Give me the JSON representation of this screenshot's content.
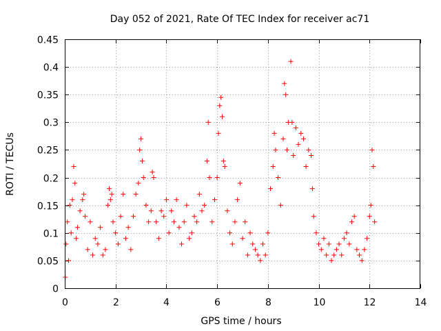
{
  "chart_data": {
    "type": "scatter",
    "title": "Day 052 of 2021, Rate Of TEC Index for receiver ac71",
    "xlabel": "GPS time / hours",
    "ylabel": "ROTI / TECUs",
    "xlim": [
      0,
      14
    ],
    "ylim": [
      0,
      0.45
    ],
    "x_ticks": [
      0,
      2,
      4,
      6,
      8,
      10,
      12,
      14
    ],
    "x_tick_labels": [
      "0",
      "2",
      "4",
      "6",
      "8",
      "10",
      "12",
      "14"
    ],
    "y_ticks": [
      0,
      0.05,
      0.1,
      0.15,
      0.2,
      0.25,
      0.3,
      0.35,
      0.4,
      0.45
    ],
    "y_tick_labels": [
      "0",
      "0.05",
      "0.1",
      "0.15",
      "0.2",
      "0.25",
      "0.3",
      "0.35",
      "0.4",
      "0.45"
    ],
    "grid": true,
    "marker": "+",
    "color": "#ff0000",
    "series": [
      {
        "name": "ROTI",
        "points": [
          [
            0.02,
            0.02
          ],
          [
            0.05,
            0.08
          ],
          [
            0.1,
            0.12
          ],
          [
            0.15,
            0.05
          ],
          [
            0.2,
            0.15
          ],
          [
            0.25,
            0.1
          ],
          [
            0.3,
            0.16
          ],
          [
            0.35,
            0.22
          ],
          [
            0.4,
            0.19
          ],
          [
            0.45,
            0.09
          ],
          [
            0.5,
            0.11
          ],
          [
            0.6,
            0.14
          ],
          [
            0.7,
            0.16
          ],
          [
            0.75,
            0.17
          ],
          [
            0.8,
            0.13
          ],
          [
            0.9,
            0.07
          ],
          [
            1.0,
            0.12
          ],
          [
            1.1,
            0.06
          ],
          [
            1.2,
            0.09
          ],
          [
            1.3,
            0.08
          ],
          [
            1.4,
            0.11
          ],
          [
            1.5,
            0.06
          ],
          [
            1.6,
            0.07
          ],
          [
            1.7,
            0.15
          ],
          [
            1.75,
            0.18
          ],
          [
            1.8,
            0.16
          ],
          [
            1.85,
            0.17
          ],
          [
            1.9,
            0.12
          ],
          [
            2.0,
            0.1
          ],
          [
            2.1,
            0.08
          ],
          [
            2.2,
            0.13
          ],
          [
            2.3,
            0.17
          ],
          [
            2.4,
            0.09
          ],
          [
            2.5,
            0.11
          ],
          [
            2.6,
            0.07
          ],
          [
            2.7,
            0.13
          ],
          [
            2.8,
            0.17
          ],
          [
            2.9,
            0.19
          ],
          [
            2.95,
            0.25
          ],
          [
            3.0,
            0.27
          ],
          [
            3.05,
            0.23
          ],
          [
            3.1,
            0.2
          ],
          [
            3.2,
            0.15
          ],
          [
            3.3,
            0.12
          ],
          [
            3.4,
            0.14
          ],
          [
            3.45,
            0.21
          ],
          [
            3.5,
            0.2
          ],
          [
            3.6,
            0.12
          ],
          [
            3.7,
            0.09
          ],
          [
            3.8,
            0.14
          ],
          [
            3.9,
            0.13
          ],
          [
            4.0,
            0.16
          ],
          [
            4.1,
            0.1
          ],
          [
            4.2,
            0.14
          ],
          [
            4.3,
            0.12
          ],
          [
            4.4,
            0.16
          ],
          [
            4.5,
            0.11
          ],
          [
            4.6,
            0.08
          ],
          [
            4.7,
            0.12
          ],
          [
            4.8,
            0.15
          ],
          [
            4.9,
            0.09
          ],
          [
            5.0,
            0.1
          ],
          [
            5.1,
            0.13
          ],
          [
            5.2,
            0.12
          ],
          [
            5.3,
            0.17
          ],
          [
            5.4,
            0.14
          ],
          [
            5.5,
            0.15
          ],
          [
            5.6,
            0.23
          ],
          [
            5.65,
            0.3
          ],
          [
            5.7,
            0.2
          ],
          [
            5.8,
            0.12
          ],
          [
            5.9,
            0.16
          ],
          [
            6.0,
            0.2
          ],
          [
            6.05,
            0.28
          ],
          [
            6.1,
            0.33
          ],
          [
            6.15,
            0.345
          ],
          [
            6.2,
            0.31
          ],
          [
            6.25,
            0.23
          ],
          [
            6.3,
            0.22
          ],
          [
            6.4,
            0.14
          ],
          [
            6.5,
            0.1
          ],
          [
            6.6,
            0.08
          ],
          [
            6.7,
            0.12
          ],
          [
            6.8,
            0.16
          ],
          [
            6.9,
            0.19
          ],
          [
            7.0,
            0.09
          ],
          [
            7.1,
            0.12
          ],
          [
            7.2,
            0.06
          ],
          [
            7.3,
            0.1
          ],
          [
            7.4,
            0.08
          ],
          [
            7.5,
            0.07
          ],
          [
            7.6,
            0.06
          ],
          [
            7.7,
            0.05
          ],
          [
            7.8,
            0.08
          ],
          [
            7.9,
            0.06
          ],
          [
            8.0,
            0.1
          ],
          [
            8.1,
            0.18
          ],
          [
            8.2,
            0.22
          ],
          [
            8.25,
            0.28
          ],
          [
            8.3,
            0.25
          ],
          [
            8.4,
            0.2
          ],
          [
            8.5,
            0.15
          ],
          [
            8.6,
            0.27
          ],
          [
            8.65,
            0.37
          ],
          [
            8.7,
            0.35
          ],
          [
            8.75,
            0.25
          ],
          [
            8.8,
            0.3
          ],
          [
            8.9,
            0.41
          ],
          [
            8.95,
            0.3
          ],
          [
            9.0,
            0.24
          ],
          [
            9.1,
            0.29
          ],
          [
            9.2,
            0.26
          ],
          [
            9.3,
            0.28
          ],
          [
            9.4,
            0.27
          ],
          [
            9.5,
            0.22
          ],
          [
            9.6,
            0.25
          ],
          [
            9.7,
            0.24
          ],
          [
            9.75,
            0.18
          ],
          [
            9.8,
            0.13
          ],
          [
            9.9,
            0.1
          ],
          [
            10.0,
            0.08
          ],
          [
            10.1,
            0.07
          ],
          [
            10.2,
            0.09
          ],
          [
            10.3,
            0.06
          ],
          [
            10.4,
            0.08
          ],
          [
            10.5,
            0.05
          ],
          [
            10.6,
            0.06
          ],
          [
            10.7,
            0.07
          ],
          [
            10.8,
            0.08
          ],
          [
            10.9,
            0.06
          ],
          [
            11.0,
            0.09
          ],
          [
            11.1,
            0.1
          ],
          [
            11.2,
            0.08
          ],
          [
            11.3,
            0.12
          ],
          [
            11.4,
            0.13
          ],
          [
            11.5,
            0.07
          ],
          [
            11.6,
            0.06
          ],
          [
            11.7,
            0.05
          ],
          [
            11.8,
            0.07
          ],
          [
            11.9,
            0.09
          ],
          [
            12.0,
            0.13
          ],
          [
            12.05,
            0.15
          ],
          [
            12.1,
            0.25
          ],
          [
            12.15,
            0.22
          ],
          [
            12.2,
            0.12
          ]
        ]
      }
    ]
  }
}
